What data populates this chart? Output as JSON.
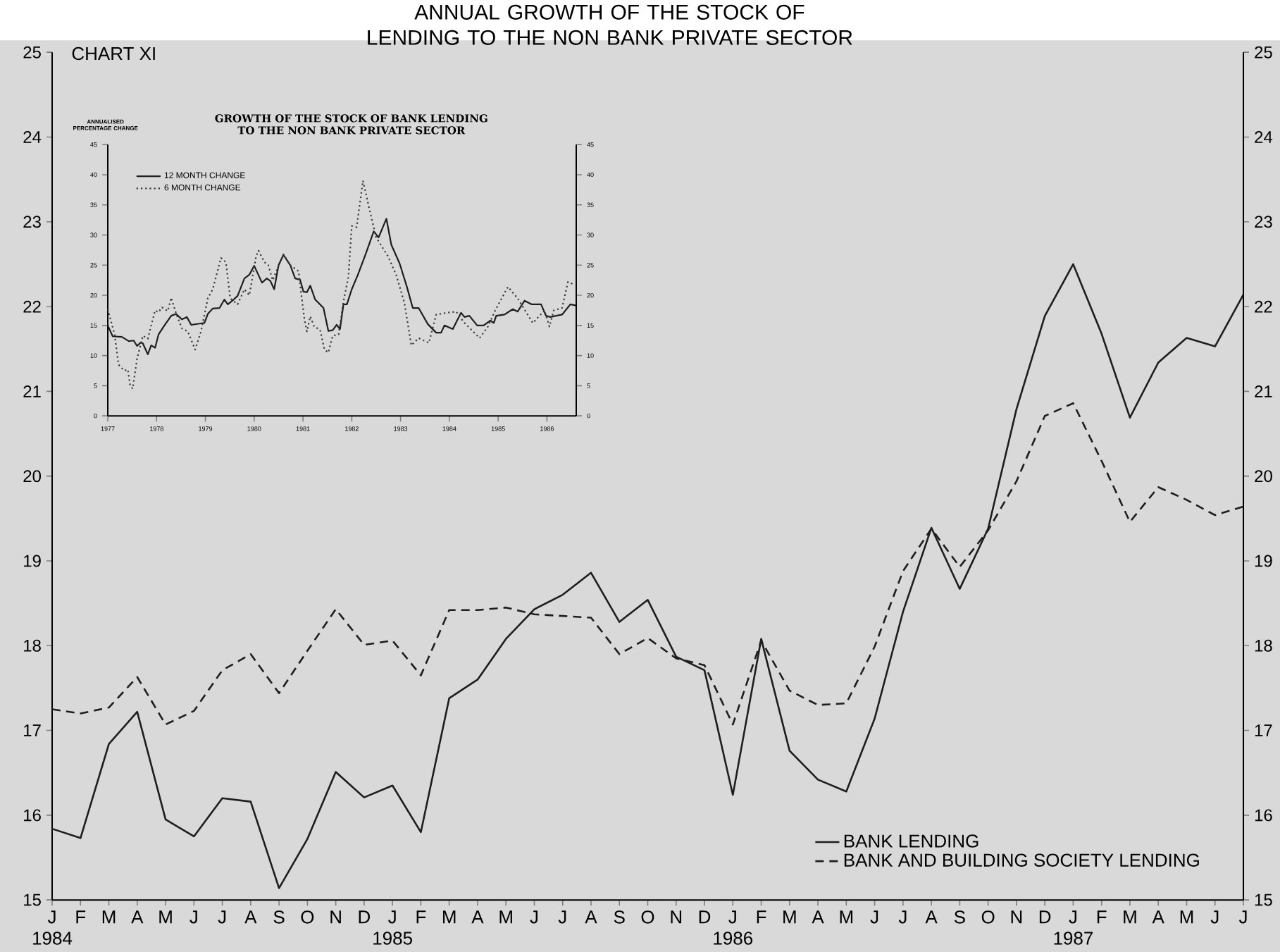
{
  "chart_data": [
    {
      "type": "line",
      "title": "ANNUAL GROWTH OF THE STOCK OF LENDING TO THE NON BANK PRIVATE SECTOR",
      "annotations": [
        "CHART XI",
        "1984",
        "1985",
        "1986",
        "1987"
      ],
      "categories": [
        "J",
        "F",
        "M",
        "A",
        "M",
        "J",
        "J",
        "A",
        "S",
        "O",
        "N",
        "D",
        "J",
        "F",
        "M",
        "A",
        "M",
        "J",
        "J",
        "A",
        "S",
        "O",
        "N",
        "D",
        "J",
        "F",
        "M",
        "A",
        "M",
        "J",
        "J",
        "A",
        "S",
        "O",
        "N",
        "D",
        "J",
        "F",
        "M",
        "A",
        "M",
        "J",
        "J"
      ],
      "series": [
        {
          "name": "BANK LENDING",
          "color": "#1e1e1e",
          "line_style": "solid",
          "values": [
            15.84,
            15.73,
            16.84,
            17.22,
            15.95,
            15.75,
            16.2,
            16.16,
            15.14,
            15.72,
            16.51,
            16.21,
            16.35,
            15.8,
            17.38,
            17.6,
            18.08,
            18.43,
            18.6,
            18.86,
            18.28,
            18.54,
            17.87,
            17.71,
            16.24,
            18.08,
            16.76,
            16.42,
            16.28,
            17.14,
            18.4,
            19.39,
            18.67,
            19.38,
            20.79,
            21.89,
            22.5,
            21.68,
            20.69,
            21.34,
            21.63,
            21.53,
            22.14
          ]
        },
        {
          "name": "BANK AND BUILDING SOCIETY LENDING",
          "color": "#1e1e1e",
          "line_style": "dashed",
          "values": [
            17.25,
            17.2,
            17.27,
            17.63,
            17.07,
            17.23,
            17.71,
            17.9,
            17.44,
            17.94,
            18.43,
            18.01,
            18.06,
            17.65,
            18.42,
            18.42,
            18.45,
            18.37,
            18.35,
            18.33,
            17.9,
            18.09,
            17.85,
            17.77,
            17.07,
            18.06,
            17.47,
            17.3,
            17.32,
            17.99,
            18.88,
            19.38,
            18.93,
            19.36,
            19.94,
            20.71,
            20.86,
            20.18,
            19.46,
            19.87,
            19.72,
            19.54,
            19.64
          ]
        }
      ],
      "ylim": [
        15,
        25
      ],
      "yticks": [
        15,
        16,
        17,
        18,
        19,
        20,
        21,
        22,
        23,
        24,
        25
      ],
      "y2lim": [
        15,
        25
      ],
      "y2ticks": [
        15,
        16,
        17,
        18,
        19,
        20,
        21,
        22,
        23,
        24,
        25
      ],
      "legend": "bottom right",
      "grid": false
    },
    {
      "type": "line",
      "title": "GROWTH OF THE STOCK OF BANK LENDING TO THE NON BANK PRIVATE SECTOR",
      "ylabel": "ANNUALISED PERCENTAGE CHANGE",
      "series": [
        {
          "name": "12 MONTH CHANGE",
          "color": "#1e1e1e",
          "line_style": "solid",
          "x": [
            1977.0,
            1977.1,
            1977.29,
            1977.43,
            1977.53,
            1977.6,
            1977.68,
            1977.72,
            1977.82,
            1977.89,
            1977.97,
            1978.04,
            1978.16,
            1978.3,
            1978.4,
            1978.52,
            1978.62,
            1978.71,
            1978.88,
            1978.98,
            1979.05,
            1979.15,
            1979.29,
            1979.39,
            1979.46,
            1979.58,
            1979.66,
            1979.8,
            1979.9,
            1980.0,
            1980.16,
            1980.26,
            1980.33,
            1980.41,
            1980.5,
            1980.6,
            1980.74,
            1980.84,
            1980.94,
            1981.01,
            1981.08,
            1981.15,
            1981.25,
            1981.42,
            1981.52,
            1981.61,
            1981.69,
            1981.76,
            1981.83,
            1981.9,
            1982.0,
            1982.12,
            1982.27,
            1982.45,
            1982.55,
            1982.71,
            1982.81,
            1982.98,
            1983.13,
            1983.25,
            1983.37,
            1983.56,
            1983.73,
            1983.83,
            1983.9,
            1984.07,
            1984.24,
            1984.31,
            1984.41,
            1984.57,
            1984.7,
            1984.84,
            1984.91,
            1984.96,
            1985.13,
            1985.3,
            1985.4,
            1985.54,
            1985.69,
            1985.88,
            1985.98,
            1986.07,
            1986.31,
            1986.48,
            1986.6
          ],
          "values": [
            15.0,
            13.2,
            13.1,
            12.4,
            12.5,
            11.6,
            12.2,
            12.0,
            10.2,
            11.7,
            11.3,
            13.5,
            15.0,
            16.6,
            16.9,
            16.0,
            16.4,
            15.1,
            15.3,
            15.4,
            16.9,
            17.8,
            17.9,
            19.3,
            18.5,
            19.3,
            19.9,
            22.8,
            23.4,
            24.9,
            22.1,
            22.8,
            22.4,
            21.0,
            25.0,
            26.7,
            25.0,
            22.8,
            22.6,
            20.6,
            20.5,
            21.6,
            19.3,
            17.9,
            14.1,
            14.2,
            15.1,
            14.4,
            18.5,
            18.5,
            21.0,
            23.3,
            26.5,
            30.6,
            29.6,
            32.7,
            28.4,
            25.3,
            21.4,
            17.9,
            17.9,
            15.2,
            13.8,
            13.8,
            15.0,
            14.4,
            17.1,
            16.4,
            16.6,
            15.0,
            15.0,
            15.8,
            15.4,
            16.6,
            16.8,
            17.7,
            17.3,
            19.1,
            18.5,
            18.5,
            16.6,
            16.4,
            16.8,
            18.5,
            18.3
          ]
        },
        {
          "name": "6 MONTH CHANGE",
          "color": "#3a3a3a",
          "line_style": "dotted",
          "x": [
            1977.0,
            1977.14,
            1977.22,
            1977.34,
            1977.41,
            1977.46,
            1977.51,
            1977.6,
            1977.72,
            1977.82,
            1977.97,
            1978.04,
            1978.11,
            1978.23,
            1978.3,
            1978.4,
            1978.52,
            1978.64,
            1978.79,
            1978.91,
            1979.05,
            1979.15,
            1979.32,
            1979.42,
            1979.51,
            1979.66,
            1979.8,
            1979.9,
            1980.04,
            1980.09,
            1980.21,
            1980.29,
            1980.38,
            1980.48,
            1980.6,
            1980.74,
            1980.91,
            1980.96,
            1981.03,
            1981.08,
            1981.15,
            1981.23,
            1981.35,
            1981.44,
            1981.52,
            1981.61,
            1981.73,
            1981.83,
            1981.93,
            1982.0,
            1982.1,
            1982.23,
            1982.35,
            1982.5,
            1982.74,
            1982.91,
            1983.08,
            1983.22,
            1983.37,
            1983.58,
            1983.73,
            1983.95,
            1984.14,
            1984.29,
            1984.62,
            1984.79,
            1984.94,
            1985.2,
            1985.4,
            1985.71,
            1985.95,
            1986.05,
            1986.14,
            1986.31,
            1986.43,
            1986.56
          ],
          "values": [
            17.7,
            13.5,
            8.5,
            7.5,
            7.7,
            5.0,
            4.5,
            9.5,
            13.3,
            12.8,
            17.5,
            17.2,
            18.0,
            17.4,
            19.6,
            17.0,
            14.5,
            14.0,
            11.0,
            14.0,
            19.5,
            21.0,
            26.2,
            25.5,
            19.5,
            18.5,
            21.0,
            20.0,
            26.5,
            27.4,
            25.5,
            25.0,
            22.5,
            24.5,
            26.8,
            25.0,
            24.0,
            20.5,
            16.0,
            14.0,
            16.5,
            14.8,
            14.3,
            11.0,
            10.5,
            13.3,
            13.5,
            19.0,
            23.0,
            31.5,
            31.3,
            39.0,
            34.7,
            29.6,
            26.5,
            23.4,
            18.7,
            11.7,
            12.9,
            12.1,
            16.8,
            17.1,
            17.3,
            15.6,
            12.9,
            14.8,
            17.5,
            21.4,
            19.5,
            15.4,
            17.5,
            14.8,
            17.5,
            17.9,
            22.2,
            21.8
          ]
        }
      ],
      "xlim": [
        1977,
        1986.6
      ],
      "xticks": [
        1977,
        1978,
        1979,
        1980,
        1981,
        1982,
        1983,
        1984,
        1985,
        1986
      ],
      "ylim": [
        0,
        45
      ],
      "yticks": [
        0,
        5,
        10,
        15,
        20,
        25,
        30,
        35,
        40,
        45
      ],
      "y2lim": [
        0,
        45
      ],
      "y2ticks": [
        0,
        5,
        10,
        15,
        20,
        25,
        30,
        35,
        40,
        45
      ],
      "legend": "top left",
      "grid": false
    }
  ]
}
